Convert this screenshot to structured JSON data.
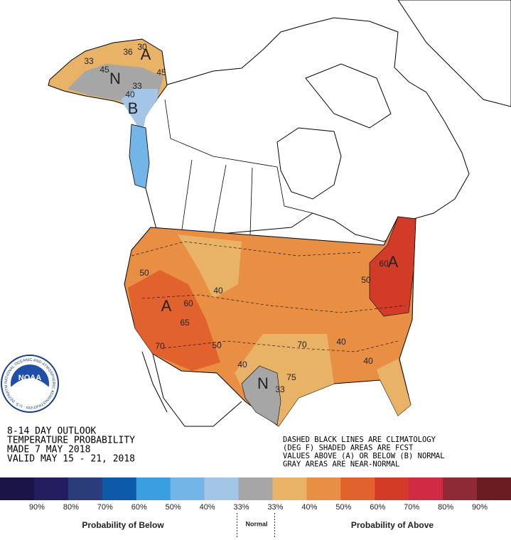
{
  "logo": {
    "text": "NOAA",
    "ring": "NATIONAL OCEANIC AND ATMOSPHERIC ADMINISTRATION · U.S. DEPARTMENT OF COMMERCE"
  },
  "outlook": [
    "8-14 DAY OUTLOOK",
    "TEMPERATURE PROBABILITY",
    "MADE  7 MAY 2018",
    "VALID  MAY 15 - 21, 2018"
  ],
  "notes": [
    "DASHED BLACK LINES ARE CLIMATOLOGY",
    "(DEG F) SHADED AREAS ARE FCST",
    "VALUES ABOVE (A) OR BELOW (B) NORMAL",
    "GRAY AREAS ARE NEAR-NORMAL"
  ],
  "map_labels": [
    "33",
    "30",
    "36",
    "A",
    "45",
    "N",
    "45",
    "33",
    "40",
    "B",
    "50",
    "A",
    "60",
    "65",
    "70",
    "50",
    "40",
    "40",
    "N",
    "33",
    "75",
    "70",
    "40",
    "40",
    "60",
    "A",
    "50"
  ],
  "legend": {
    "colors": [
      "#1b1547",
      "#241e5e",
      "#2b3c7a",
      "#0d5aa8",
      "#3a9ee0",
      "#72b5e6",
      "#a4c6e6",
      "#a6a6a6",
      "#e9b367",
      "#e88f43",
      "#e2622e",
      "#d33b29",
      "#cf2b45",
      "#8e2a35",
      "#6b1c22"
    ],
    "labels": [
      "90%",
      "80%",
      "70%",
      "60%",
      "50%",
      "40%",
      "33%",
      "33%",
      "40%",
      "50%",
      "60%",
      "70%",
      "80%",
      "90%"
    ],
    "below": "Probability of Below",
    "normal": "Normal",
    "above": "Probability of Above"
  }
}
